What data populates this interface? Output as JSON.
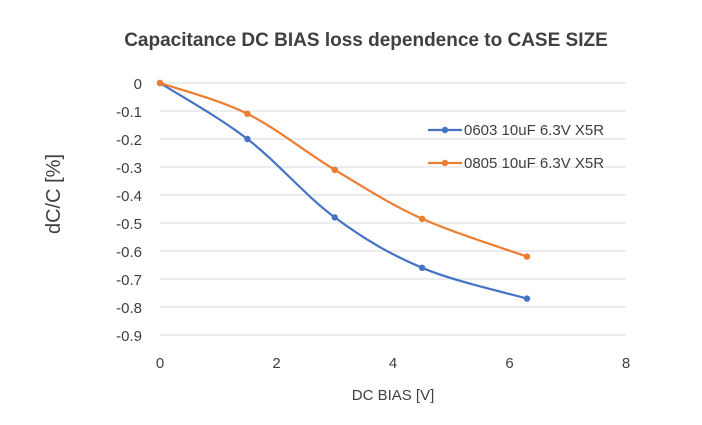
{
  "chart_data": {
    "type": "line",
    "title": "Capacitance DC BIAS loss dependence to CASE SIZE",
    "xlabel": "DC BIAS [V]",
    "ylabel": "dC/C [%]",
    "xlim": [
      0,
      8
    ],
    "ylim": [
      -0.9,
      0
    ],
    "x_ticks": [
      0,
      2,
      4,
      6,
      8
    ],
    "y_ticks": [
      0,
      -0.1,
      -0.2,
      -0.3,
      -0.4,
      -0.5,
      -0.6,
      -0.7,
      -0.8,
      -0.9
    ],
    "x_tick_labels": [
      "0",
      "2",
      "4",
      "6",
      "8"
    ],
    "y_tick_labels": [
      "0",
      "-0.1",
      "-0.2",
      "-0.3",
      "-0.4",
      "-0.5",
      "-0.6",
      "-0.7",
      "-0.8",
      "-0.9"
    ],
    "grid": "horizontal",
    "legend_position": "right",
    "series": [
      {
        "name": "0603 10uF 6.3V X5R",
        "color": "#4472C4",
        "x": [
          0,
          1.5,
          3,
          4.5,
          6.3
        ],
        "y": [
          0,
          -0.2,
          -0.48,
          -0.66,
          -0.77
        ]
      },
      {
        "name": "0805 10uF 6.3V X5R",
        "color": "#ED7D31",
        "x": [
          0,
          1.5,
          3,
          4.5,
          6.3
        ],
        "y": [
          0,
          -0.11,
          -0.31,
          -0.485,
          -0.62
        ]
      }
    ]
  }
}
